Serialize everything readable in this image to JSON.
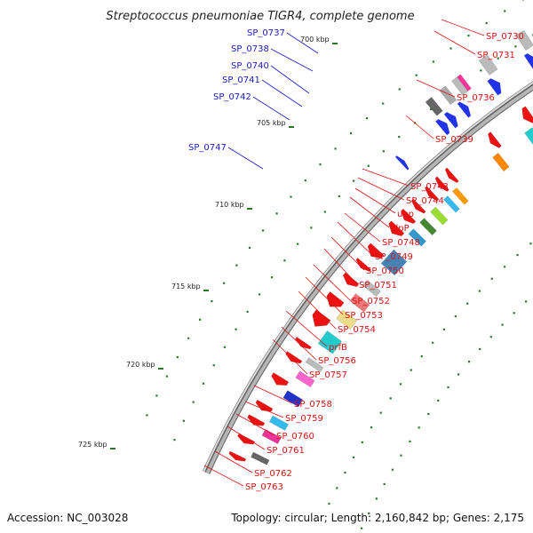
{
  "title": "Streptococcus pneumoniae TIGR4, complete genome",
  "footer": {
    "accession": "Accession: NC_003028",
    "summary": "Topology: circular; Length: 2,160,842 bp; Genes: 2,175"
  },
  "scale_labels": [
    "700 kbp",
    "705 kbp",
    "710 kbp",
    "715 kbp",
    "720 kbp",
    "725 kbp"
  ],
  "colors": {
    "forward_label": "#1a1acc",
    "reverse_label": "#dd1111",
    "backbone": "#888888"
  },
  "forward_genes": [
    "SP_0737",
    "SP_0738",
    "SP_0740",
    "SP_0741",
    "SP_0742",
    "SP_0747"
  ],
  "reverse_genes": [
    "SP_0730",
    "SP_0731",
    "SP_0736",
    "SP_0739",
    "SP_0743",
    "SP_0744",
    "upp",
    "clpP",
    "SP_0748",
    "SP_0749",
    "SP_0750",
    "SP_0751",
    "SP_0752",
    "SP_0753",
    "SP_0754",
    "prfB",
    "SP_0756",
    "SP_0757",
    "SP_0758",
    "SP_0759",
    "SP_0760",
    "SP_0761",
    "SP_0762",
    "SP_0763"
  ]
}
